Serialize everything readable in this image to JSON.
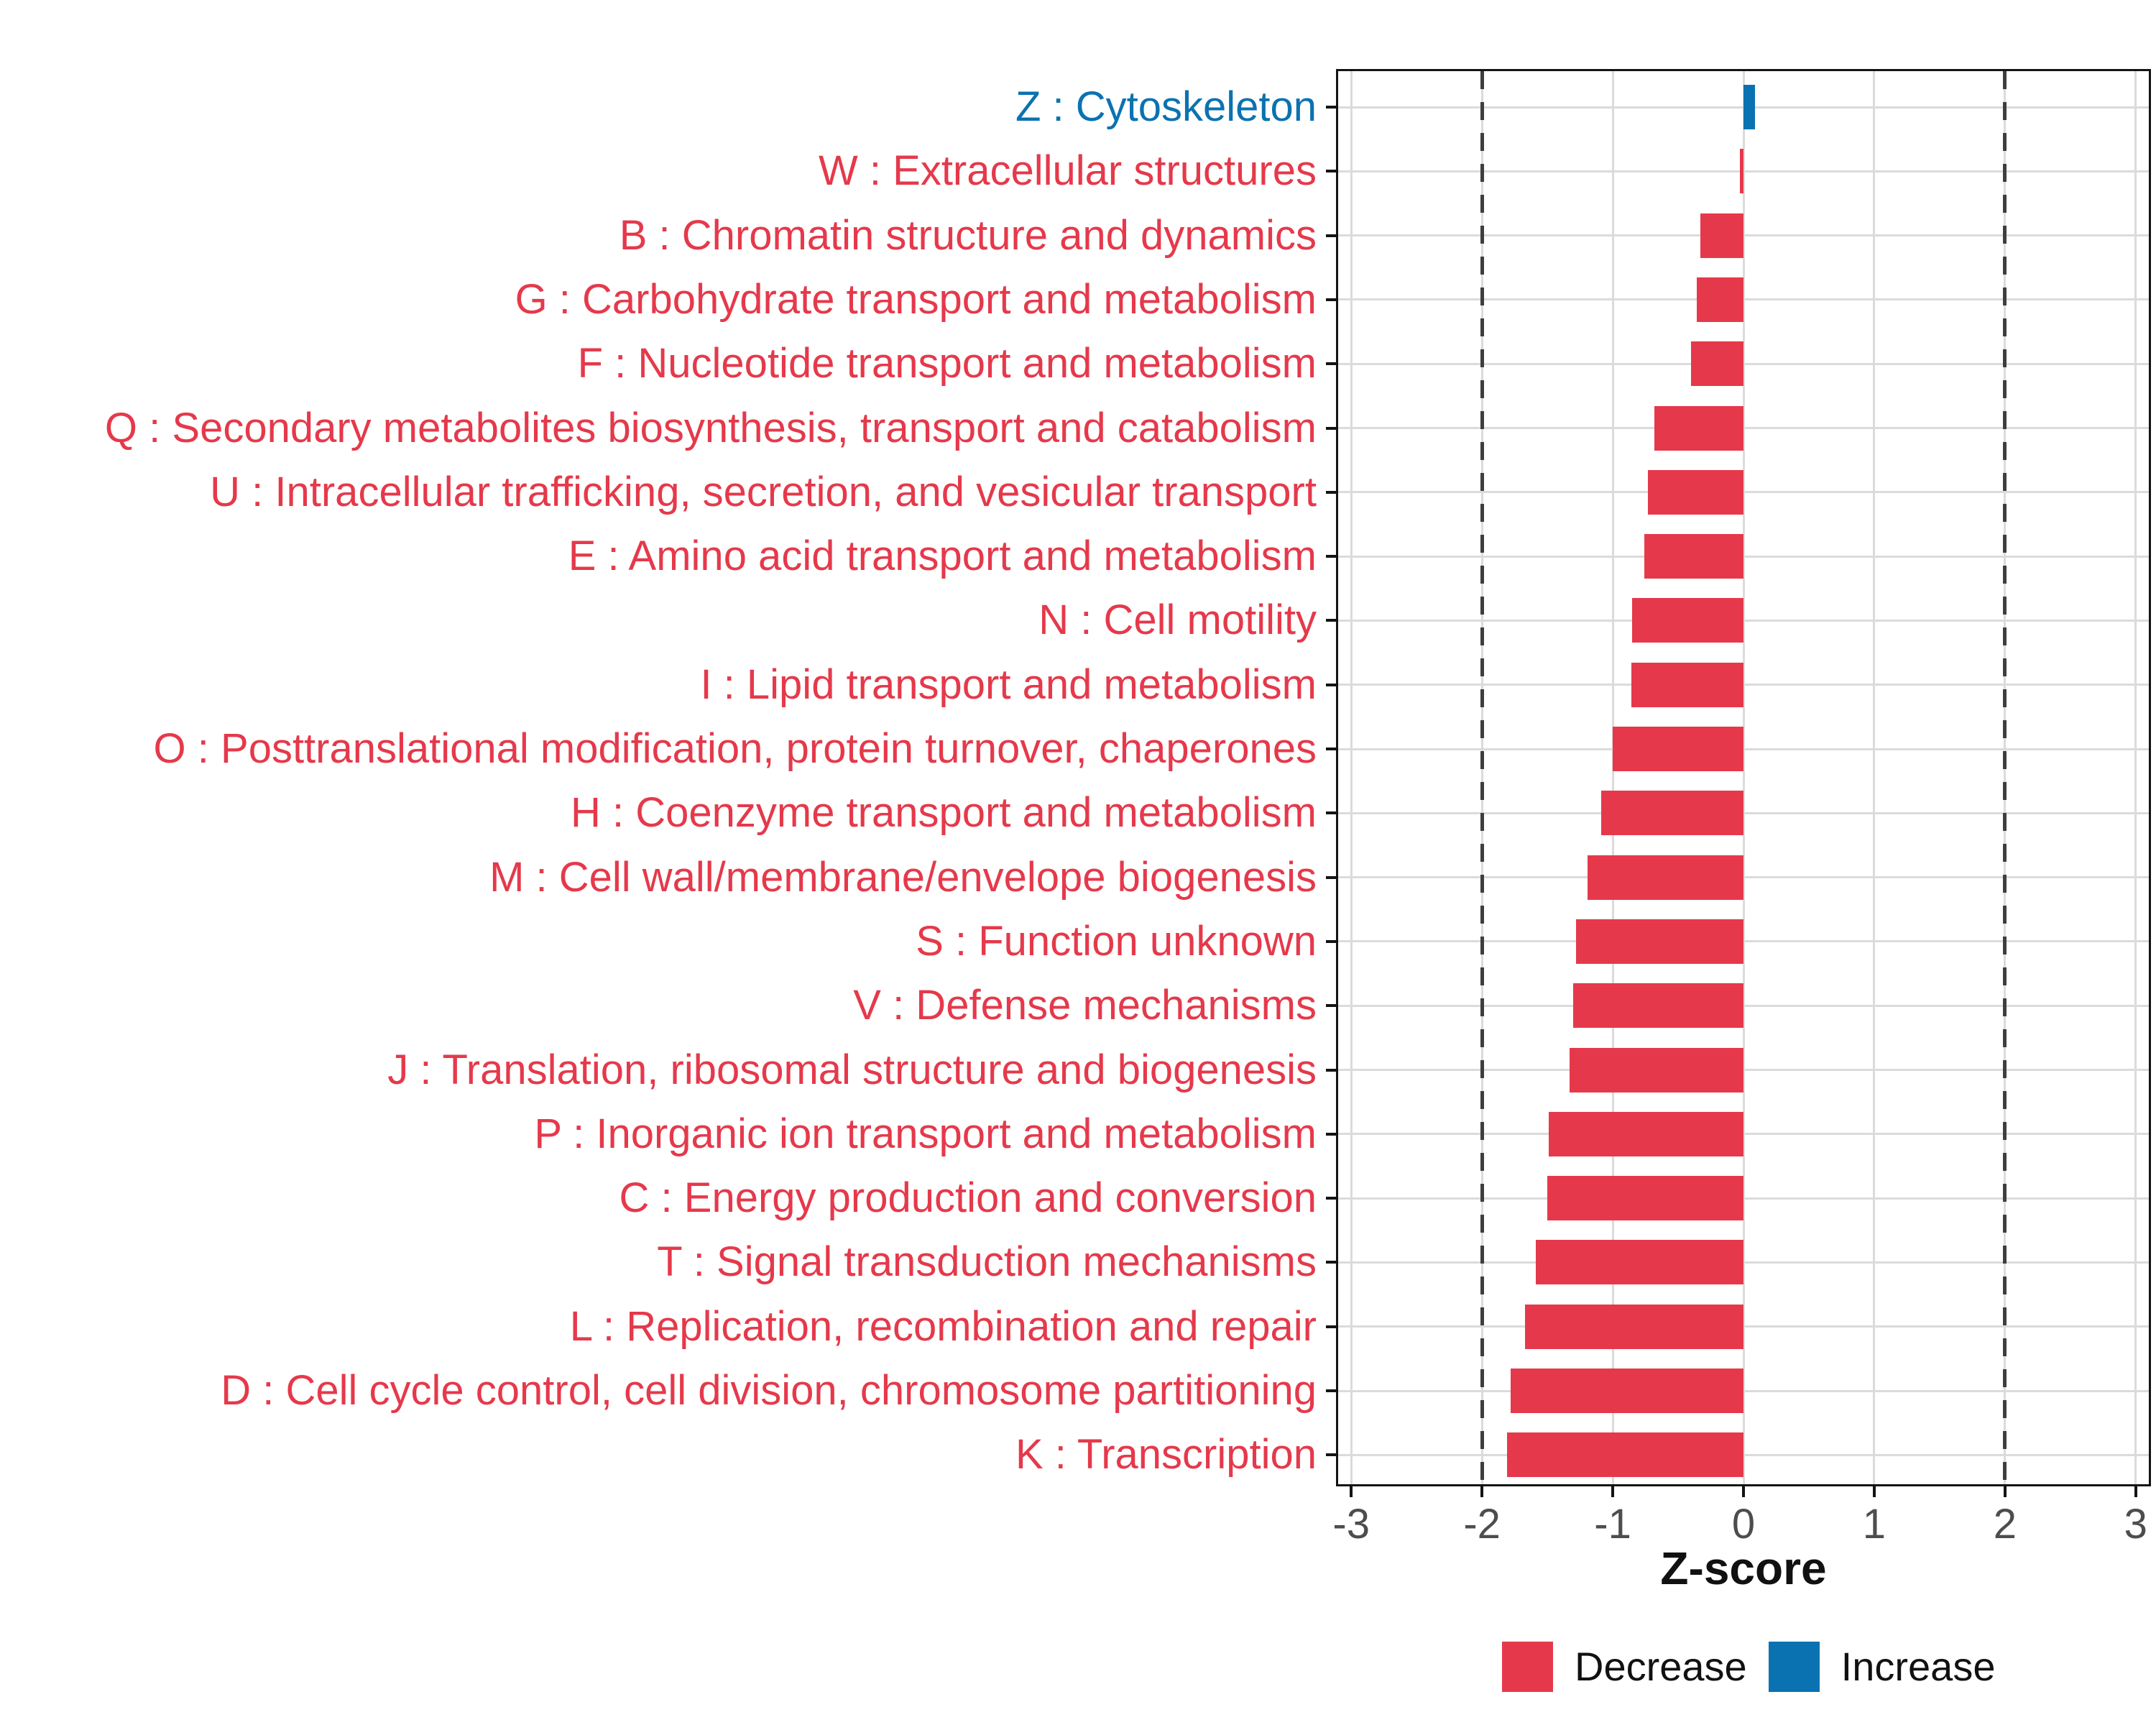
{
  "figure": {
    "background": "#ffffff"
  },
  "colors": {
    "decrease": "#E5394B",
    "increase": "#0B72B1",
    "grid": "#DBDBDB",
    "dashed_reference": "#3E3E3E",
    "tick_label": "#4D4D4D",
    "axis": "#141414"
  },
  "axis": {
    "title": "Z-score",
    "tick_labels": [
      "-3",
      "-2",
      "-1",
      "0",
      "1",
      "2",
      "3"
    ]
  },
  "legend": {
    "items": [
      {
        "label": "Decrease",
        "color": "#E5394B"
      },
      {
        "label": "Increase",
        "color": "#0B72B1"
      }
    ]
  },
  "chart_data": {
    "type": "bar",
    "orientation": "horizontal",
    "title": "",
    "xlabel": "Z-score",
    "ylabel": "",
    "xlim": [
      -3.1,
      3.1
    ],
    "x_ticks": [
      -3,
      -2,
      -1,
      0,
      1,
      2,
      3
    ],
    "reference_lines_dashed": [
      -2,
      2
    ],
    "grid": true,
    "legend_position": "bottom-right",
    "series_colors": {
      "decrease": "#E5394B",
      "increase": "#0B72B1"
    },
    "categories": [
      "Z : Cytoskeleton",
      "W : Extracellular structures",
      "B : Chromatin structure and dynamics",
      "G : Carbohydrate transport and metabolism",
      "F : Nucleotide transport and metabolism",
      "Q : Secondary metabolites biosynthesis, transport and catabolism",
      "U : Intracellular trafficking, secretion, and vesicular transport",
      "E : Amino acid transport and metabolism",
      "N : Cell motility",
      "I : Lipid transport and metabolism",
      "O : Posttranslational modification, protein turnover, chaperones",
      "H : Coenzyme transport and metabolism",
      "M : Cell wall/membrane/envelope biogenesis",
      "S : Function unknown",
      "V : Defense mechanisms",
      "J : Translation, ribosomal structure and biogenesis",
      "P : Inorganic ion transport and metabolism",
      "C : Energy production and conversion",
      "T : Signal transduction mechanisms",
      "L : Replication, recombination and repair",
      "D : Cell cycle control, cell division, chromosome partitioning",
      "K : Transcription"
    ],
    "values": [
      0.09,
      -0.03,
      -0.33,
      -0.36,
      -0.4,
      -0.68,
      -0.73,
      -0.76,
      -0.85,
      -0.86,
      -1.0,
      -1.09,
      -1.19,
      -1.28,
      -1.3,
      -1.33,
      -1.49,
      -1.5,
      -1.59,
      -1.67,
      -1.78,
      -1.81
    ],
    "directions": [
      "increase",
      "decrease",
      "decrease",
      "decrease",
      "decrease",
      "decrease",
      "decrease",
      "decrease",
      "decrease",
      "decrease",
      "decrease",
      "decrease",
      "decrease",
      "decrease",
      "decrease",
      "decrease",
      "decrease",
      "decrease",
      "decrease",
      "decrease",
      "decrease",
      "decrease"
    ]
  }
}
